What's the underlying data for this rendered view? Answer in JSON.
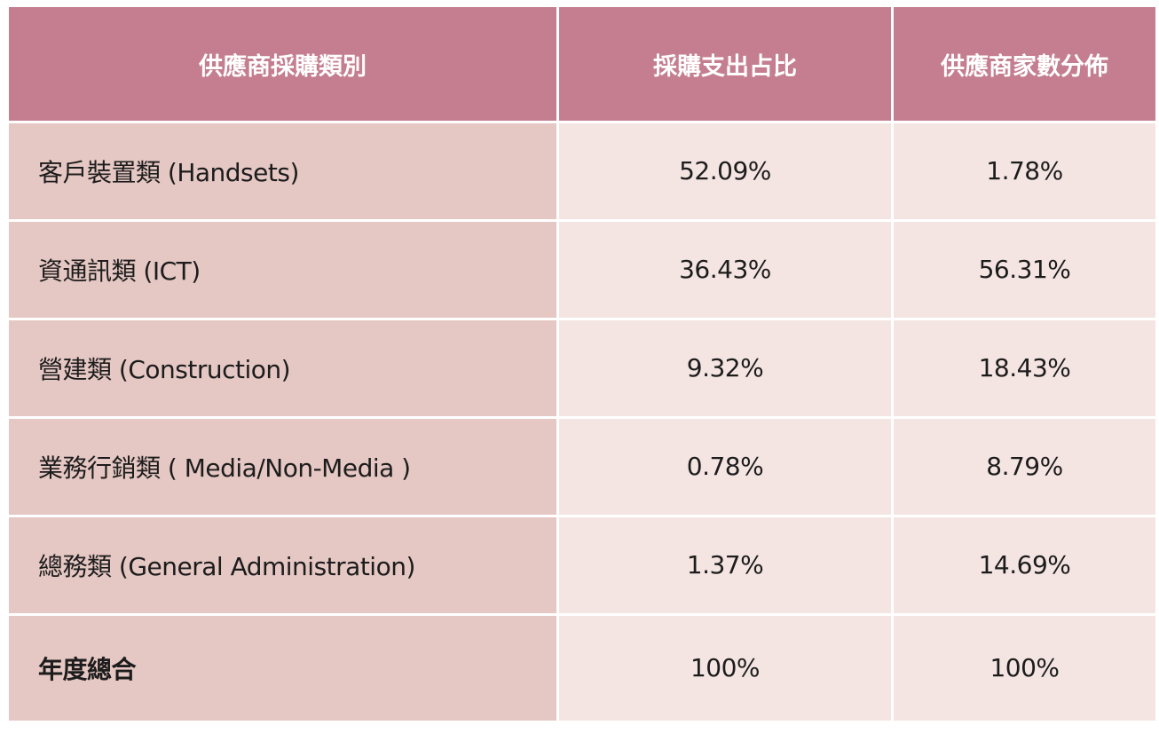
{
  "table": {
    "headers": [
      "供應商採購類別",
      "採購支出占比",
      "供應商家數分佈"
    ],
    "rows": [
      {
        "category": "客戶裝置類 (Handsets)",
        "spend_share": "52.09%",
        "supplier_share": "1.78%"
      },
      {
        "category": "資通訊類 (ICT)",
        "spend_share": "36.43%",
        "supplier_share": "56.31%"
      },
      {
        "category": "營建類 (Construction)",
        "spend_share": "9.32%",
        "supplier_share": "18.43%"
      },
      {
        "category": "業務行銷類 ( Media/Non-Media )",
        "spend_share": "0.78%",
        "supplier_share": "8.79%"
      },
      {
        "category": "總務類 (General Administration)",
        "spend_share": "1.37%",
        "supplier_share": "14.69%"
      }
    ],
    "total": {
      "category": "年度總合",
      "spend_share": "100%",
      "supplier_share": "100%"
    }
  },
  "colors": {
    "header_bg": "#c47e8f",
    "category_cell_bg": "#e5c7c3",
    "value_cell_bg": "#f4e5e2"
  }
}
